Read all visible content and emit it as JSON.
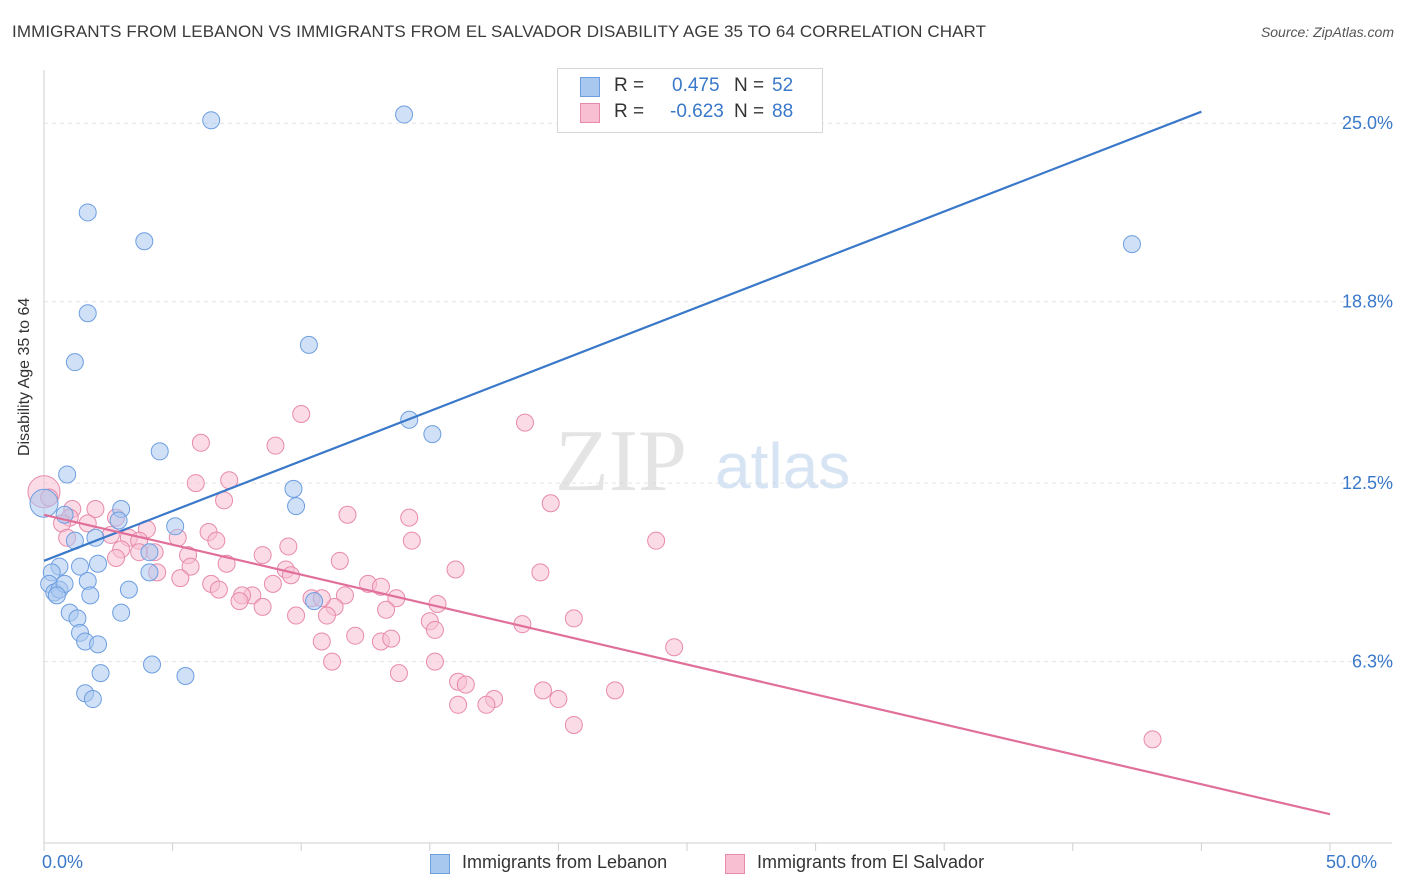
{
  "title": "IMMIGRANTS FROM LEBANON VS IMMIGRANTS FROM EL SALVADOR DISABILITY AGE 35 TO 64 CORRELATION CHART",
  "source": "Source: ZipAtlas.com",
  "watermark": {
    "zip": "ZIP",
    "atlas": "atlas"
  },
  "legend": {
    "r_label": "R =",
    "n_label": "N =",
    "rows": [
      {
        "r": "0.475",
        "n": "52",
        "color": "#a9c8f0",
        "stroke": "#6d9ee0"
      },
      {
        "r": "-0.623",
        "n": "88",
        "color": "#f7bfd1",
        "stroke": "#e88aab"
      }
    ]
  },
  "bottom_legend": [
    "Immigrants from Lebanon",
    "Immigrants from El Salvador"
  ],
  "chart_data": {
    "type": "scatter",
    "title": "IMMIGRANTS FROM LEBANON VS IMMIGRANTS FROM EL SALVADOR DISABILITY AGE 35 TO 64 CORRELATION CHART",
    "xlabel": "",
    "ylabel": "Disability Age 35 to 64",
    "xlim": [
      0,
      50
    ],
    "ylim": [
      0,
      26.5
    ],
    "x_tick_labels": [
      "0.0%",
      "50.0%"
    ],
    "y_ticks": [
      6.3,
      12.5,
      18.8,
      25.0
    ],
    "y_tick_labels": [
      "6.3%",
      "12.5%",
      "18.8%",
      "25.0%"
    ],
    "grid": true,
    "colors": {
      "lebanon": "#3a78c9",
      "el_salvador": "#e0709a",
      "axis_text": "#3a78c9"
    },
    "series": [
      {
        "name": "Immigrants from Lebanon",
        "color": "#a9c8f0",
        "trend": {
          "x": [
            0,
            45
          ],
          "y": [
            9.8,
            25.4
          ]
        },
        "points": [
          [
            6.5,
            25.1
          ],
          [
            14.0,
            25.3
          ],
          [
            1.7,
            21.9
          ],
          [
            3.9,
            20.9
          ],
          [
            42.3,
            20.8
          ],
          [
            1.7,
            18.4
          ],
          [
            1.2,
            16.7
          ],
          [
            10.3,
            17.3
          ],
          [
            14.2,
            14.7
          ],
          [
            15.1,
            14.2
          ],
          [
            4.5,
            13.6
          ],
          [
            0.9,
            12.8
          ],
          [
            9.7,
            12.3
          ],
          [
            0,
            11.8
          ],
          [
            9.8,
            11.7
          ],
          [
            3.0,
            11.6
          ],
          [
            2.9,
            11.2
          ],
          [
            0.8,
            11.4
          ],
          [
            5.1,
            11.0
          ],
          [
            1.2,
            10.5
          ],
          [
            2.0,
            10.6
          ],
          [
            4.1,
            10.1
          ],
          [
            2.1,
            9.7
          ],
          [
            1.4,
            9.6
          ],
          [
            0.6,
            9.6
          ],
          [
            0.3,
            9.4
          ],
          [
            4.1,
            9.4
          ],
          [
            0.2,
            9.0
          ],
          [
            0.4,
            8.7
          ],
          [
            0.6,
            8.8
          ],
          [
            0.8,
            9.0
          ],
          [
            1.7,
            9.1
          ],
          [
            0.5,
            8.6
          ],
          [
            1.8,
            8.6
          ],
          [
            3.3,
            8.8
          ],
          [
            10.5,
            8.4
          ],
          [
            3.0,
            8.0
          ],
          [
            1.0,
            8.0
          ],
          [
            1.3,
            7.8
          ],
          [
            1.4,
            7.3
          ],
          [
            1.6,
            7.0
          ],
          [
            2.1,
            6.9
          ],
          [
            4.2,
            6.2
          ],
          [
            2.2,
            5.9
          ],
          [
            5.5,
            5.8
          ],
          [
            1.6,
            5.2
          ],
          [
            1.9,
            5.0
          ]
        ]
      },
      {
        "name": "Immigrants from El Salvador",
        "color": "#f7bfd1",
        "trend": {
          "x": [
            0,
            50
          ],
          "y": [
            11.4,
            1.0
          ]
        },
        "points": [
          [
            0,
            12.2
          ],
          [
            0.2,
            12.0
          ],
          [
            1.1,
            11.6
          ],
          [
            2.0,
            11.6
          ],
          [
            1.0,
            11.3
          ],
          [
            2.8,
            11.3
          ],
          [
            0.7,
            11.1
          ],
          [
            1.7,
            11.1
          ],
          [
            4.0,
            10.9
          ],
          [
            2.6,
            10.7
          ],
          [
            3.3,
            10.6
          ],
          [
            0.9,
            10.6
          ],
          [
            6.4,
            10.8
          ],
          [
            3.7,
            10.5
          ],
          [
            5.2,
            10.6
          ],
          [
            6.7,
            10.5
          ],
          [
            10.0,
            14.9
          ],
          [
            18.7,
            14.6
          ],
          [
            6.1,
            13.9
          ],
          [
            9.0,
            13.8
          ],
          [
            7.2,
            12.6
          ],
          [
            5.9,
            12.5
          ],
          [
            7.0,
            11.9
          ],
          [
            11.8,
            11.4
          ],
          [
            14.2,
            11.3
          ],
          [
            19.7,
            11.8
          ],
          [
            23.8,
            10.5
          ],
          [
            3.0,
            10.2
          ],
          [
            3.7,
            10.1
          ],
          [
            4.3,
            10.1
          ],
          [
            5.6,
            10.0
          ],
          [
            2.8,
            9.9
          ],
          [
            8.5,
            10.0
          ],
          [
            9.5,
            10.3
          ],
          [
            11.5,
            9.8
          ],
          [
            7.1,
            9.7
          ],
          [
            5.7,
            9.6
          ],
          [
            9.4,
            9.5
          ],
          [
            16.0,
            9.5
          ],
          [
            19.3,
            9.4
          ],
          [
            4.4,
            9.4
          ],
          [
            5.3,
            9.2
          ],
          [
            6.5,
            9.0
          ],
          [
            8.1,
            8.6
          ],
          [
            7.7,
            8.6
          ],
          [
            8.9,
            9.0
          ],
          [
            9.6,
            9.3
          ],
          [
            11.7,
            8.6
          ],
          [
            12.6,
            9.0
          ],
          [
            13.1,
            8.9
          ],
          [
            13.7,
            8.5
          ],
          [
            15.3,
            8.3
          ],
          [
            13.3,
            8.1
          ],
          [
            11.3,
            8.2
          ],
          [
            9.8,
            7.9
          ],
          [
            10.4,
            8.5
          ],
          [
            10.8,
            8.5
          ],
          [
            11.0,
            7.9
          ],
          [
            8.5,
            8.2
          ],
          [
            15.0,
            7.7
          ],
          [
            18.6,
            7.6
          ],
          [
            20.6,
            7.8
          ],
          [
            24.5,
            6.8
          ],
          [
            12.1,
            7.2
          ],
          [
            13.1,
            7.0
          ],
          [
            15.2,
            7.4
          ],
          [
            13.5,
            7.1
          ],
          [
            10.8,
            7.0
          ],
          [
            11.2,
            6.3
          ],
          [
            13.8,
            5.9
          ],
          [
            15.2,
            6.3
          ],
          [
            16.1,
            5.6
          ],
          [
            16.4,
            5.5
          ],
          [
            17.5,
            5.0
          ],
          [
            19.4,
            5.3
          ],
          [
            20.0,
            5.0
          ],
          [
            22.2,
            5.3
          ],
          [
            16.1,
            4.8
          ],
          [
            17.2,
            4.8
          ],
          [
            20.6,
            4.1
          ],
          [
            43.1,
            3.6
          ],
          [
            7.6,
            8.4
          ],
          [
            6.8,
            8.8
          ],
          [
            14.3,
            10.5
          ]
        ]
      }
    ]
  }
}
